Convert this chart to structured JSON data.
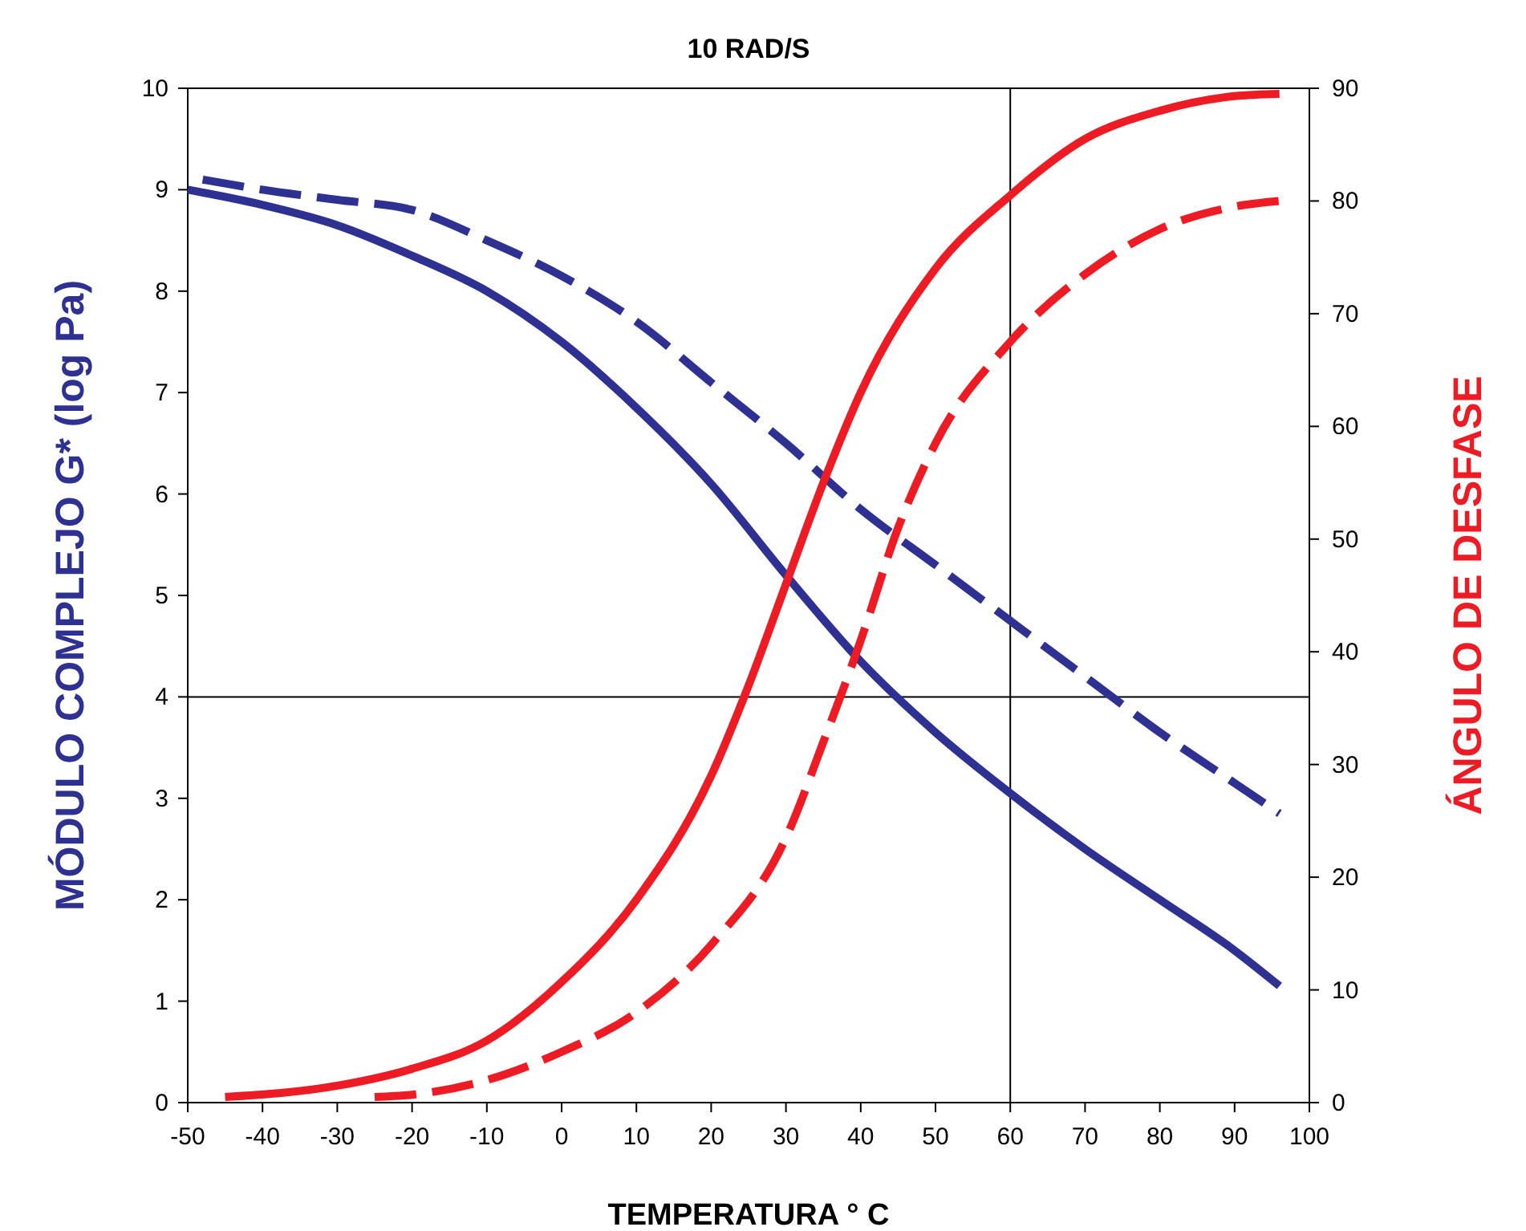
{
  "chart_data": {
    "type": "line",
    "title": "10 RAD/S",
    "xlabel": "TEMPERATURA ° C",
    "ylabel": "MÓDULO COMPLEJO G* (log Pa)",
    "y2label": "ÁNGULO DE DESFASE",
    "xlim": [
      -50,
      100
    ],
    "xticks": [
      -50,
      -40,
      -30,
      -20,
      -10,
      0,
      10,
      20,
      30,
      40,
      50,
      60,
      70,
      80,
      90,
      100
    ],
    "ylim": [
      0,
      10
    ],
    "yticks": [
      0,
      1,
      2,
      3,
      4,
      5,
      6,
      7,
      8,
      9,
      10
    ],
    "y2lim": [
      0,
      90
    ],
    "y2ticks": [
      0,
      10,
      20,
      30,
      40,
      50,
      60,
      70,
      80,
      90
    ],
    "grid": false,
    "ref_lines": [
      {
        "axis": "x",
        "value": 60,
        "color": "#000000"
      },
      {
        "axis": "y",
        "value": 4,
        "color": "#000000"
      }
    ],
    "series": [
      {
        "color": "#2e3192",
        "line_style": "solid",
        "x": [
          -50,
          -40,
          -30,
          -20,
          -10,
          0,
          10,
          20,
          30,
          40,
          50,
          60,
          70,
          80,
          90,
          96
        ],
        "values": [
          9.0,
          8.85,
          8.65,
          8.35,
          8.0,
          7.5,
          6.85,
          6.1,
          5.2,
          4.35,
          3.65,
          3.05,
          2.5,
          2.0,
          1.5,
          1.15
        ]
      },
      {
        "color": "#2e3192",
        "line_style": "dashed",
        "x": [
          -48,
          -40,
          -30,
          -20,
          -10,
          0,
          10,
          20,
          30,
          40,
          50,
          60,
          70,
          80,
          90,
          96
        ],
        "values": [
          9.1,
          9.0,
          8.9,
          8.8,
          8.5,
          8.15,
          7.7,
          7.1,
          6.5,
          5.85,
          5.3,
          4.75,
          4.2,
          3.65,
          3.15,
          2.85
        ]
      },
      {
        "color": "#ed1c24",
        "line_style": "solid",
        "axis": "y2",
        "x": [
          -45,
          -30,
          -20,
          -10,
          0,
          10,
          20,
          25,
          30,
          35,
          40,
          50,
          60,
          70,
          80,
          90,
          96
        ],
        "values": [
          0.5,
          1.5,
          3,
          5.5,
          10.7,
          18,
          29,
          37,
          46,
          55,
          63,
          74,
          80.5,
          85.5,
          88,
          89.3,
          89.5
        ]
      },
      {
        "color": "#ed1c24",
        "line_style": "dashed",
        "axis": "y2",
        "x": [
          -25,
          -20,
          -10,
          0,
          10,
          20,
          30,
          35,
          40,
          45,
          50,
          60,
          70,
          80,
          90,
          96
        ],
        "values": [
          0.5,
          0.7,
          2,
          4.5,
          8,
          14,
          23.5,
          32,
          41,
          51,
          58.5,
          67.5,
          73.5,
          77.5,
          79.5,
          80
        ]
      }
    ]
  }
}
